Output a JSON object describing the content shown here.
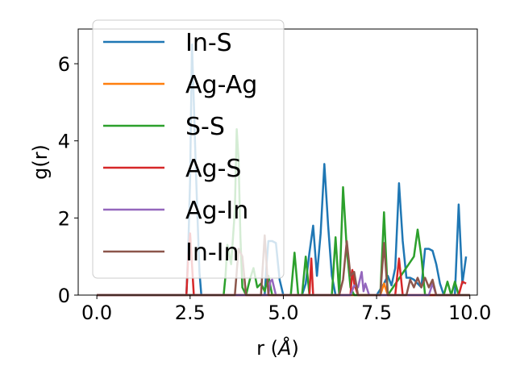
{
  "chart_data": {
    "type": "line",
    "xlabel": "r (",
    "xlabel_unit": "Å",
    "xlabel_close": ")",
    "ylabel": "g(r)",
    "xlim": [
      -0.5,
      10.2
    ],
    "ylim": [
      0,
      6.9
    ],
    "xticks": [
      0.0,
      2.5,
      5.0,
      7.5,
      10.0
    ],
    "xtick_labels": [
      "0.0",
      "2.5",
      "5.0",
      "7.5",
      "10.0"
    ],
    "yticks": [
      0,
      2,
      4,
      6
    ],
    "ytick_labels": [
      "0",
      "2",
      "4",
      "6"
    ],
    "grid": false,
    "legend_position": "upper-left",
    "series": [
      {
        "name": "In-S",
        "color": "#1f77b4",
        "x": [
          0.0,
          2.4,
          2.45,
          2.5,
          2.55,
          2.6,
          2.65,
          2.7,
          2.75,
          2.8,
          4.5,
          4.55,
          4.6,
          4.7,
          4.8,
          4.9,
          5.0,
          5.5,
          5.6,
          5.7,
          5.8,
          5.9,
          6.0,
          6.1,
          6.2,
          6.3,
          6.4,
          7.5,
          7.6,
          7.7,
          7.8,
          7.9,
          8.0,
          8.1,
          8.2,
          8.3,
          8.4,
          8.5,
          8.6,
          8.7,
          8.8,
          8.9,
          9.0,
          9.1,
          9.2,
          9.3,
          9.6,
          9.7,
          9.8,
          9.9
        ],
        "y": [
          0,
          0,
          1.2,
          3.0,
          6.5,
          5.0,
          3.4,
          2.0,
          0.6,
          0,
          0,
          0.8,
          1.4,
          1.4,
          1.35,
          0.4,
          0,
          0,
          0.3,
          1.1,
          1.8,
          0.5,
          1.6,
          3.4,
          1.8,
          0.5,
          0,
          0,
          0.15,
          0.3,
          0.5,
          0.25,
          0.7,
          2.9,
          1.4,
          0.45,
          0.45,
          0.4,
          0.3,
          0.2,
          1.2,
          1.2,
          1.15,
          0.8,
          0.3,
          0,
          0,
          2.35,
          0.3,
          1.0
        ]
      },
      {
        "name": "Ag-Ag",
        "color": "#ff7f0e",
        "x": [
          0.0,
          7.6,
          7.7,
          7.8,
          10.0
        ],
        "y": [
          0,
          0,
          0.3,
          0,
          0
        ]
      },
      {
        "name": "S-S",
        "color": "#2ca02c",
        "x": [
          0.0,
          3.4,
          3.45,
          3.5,
          3.6,
          3.7,
          3.75,
          3.8,
          3.85,
          3.9,
          4.0,
          4.1,
          4.2,
          4.3,
          4.4,
          4.5,
          4.6,
          4.7,
          5.2,
          5.3,
          5.4,
          5.5,
          5.6,
          5.7,
          6.3,
          6.4,
          6.5,
          6.6,
          6.7,
          6.8,
          6.9,
          7.6,
          7.7,
          7.8,
          8.5,
          8.6,
          8.7,
          8.8,
          9.3,
          9.4,
          9.5,
          9.6,
          9.7,
          10.0
        ],
        "y": [
          0,
          0,
          0.5,
          1.3,
          0.8,
          2.2,
          4.3,
          3.5,
          1.5,
          0.2,
          0,
          0.4,
          0.7,
          0.2,
          0.3,
          0.1,
          0.5,
          0,
          0,
          1.1,
          0,
          0,
          1.0,
          0,
          0,
          1.5,
          0,
          2.8,
          1.2,
          0.2,
          0,
          0,
          2.15,
          0,
          1.0,
          1.7,
          1.0,
          0,
          0,
          0.35,
          0,
          0.35,
          0,
          0
        ]
      },
      {
        "name": "Ag-S",
        "color": "#d62728",
        "x": [
          0.0,
          2.4,
          2.45,
          2.5,
          2.55,
          2.6,
          5.7,
          5.75,
          5.8,
          6.8,
          6.85,
          6.9,
          7.0,
          8.0,
          8.1,
          8.2,
          9.7,
          9.8,
          9.9
        ],
        "y": [
          0,
          0,
          1.0,
          1.6,
          0.8,
          0,
          0,
          0.95,
          0,
          0,
          0.65,
          0.3,
          0,
          0,
          0.95,
          0,
          0,
          0.35,
          0.3
        ]
      },
      {
        "name": "Ag-In",
        "color": "#9467bd",
        "x": [
          0.0,
          4.6,
          4.65,
          4.7,
          4.8,
          6.8,
          6.9,
          7.0,
          7.1,
          7.15,
          7.2,
          7.3,
          8.9,
          9.0,
          9.1,
          10.0
        ],
        "y": [
          0,
          0,
          0.35,
          0.4,
          0,
          0,
          0.25,
          0.2,
          0.6,
          0.1,
          0.3,
          0,
          0,
          0.3,
          0,
          0
        ]
      },
      {
        "name": "In-In",
        "color": "#8c564b",
        "x": [
          0.0,
          3.7,
          3.75,
          3.8,
          3.9,
          4.0,
          4.4,
          4.5,
          4.55,
          4.6,
          6.5,
          6.6,
          6.7,
          6.8,
          6.9,
          7.0,
          7.6,
          7.7,
          7.8,
          8.3,
          8.4,
          8.5,
          8.6,
          8.7,
          8.8,
          8.9,
          9.0,
          9.1,
          10.0
        ],
        "y": [
          0,
          0,
          0.6,
          1.2,
          1.0,
          0,
          0,
          1.55,
          0.8,
          0,
          0,
          0.4,
          1.4,
          0.5,
          0.6,
          0,
          0,
          1.35,
          0,
          0,
          0.4,
          0.2,
          0.45,
          0.2,
          0.45,
          0.2,
          0.4,
          0,
          0
        ]
      }
    ]
  }
}
